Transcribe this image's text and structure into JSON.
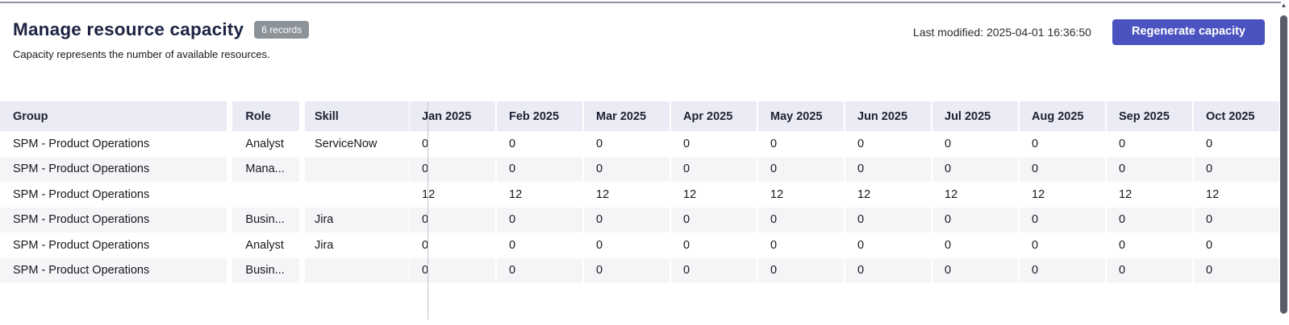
{
  "header": {
    "title": "Manage resource capacity",
    "records_badge": "6 records",
    "subtitle": "Capacity represents the number of available resources.",
    "last_modified": "Last modified: 2025-04-01 16:36:50",
    "regenerate_button": "Regenerate capacity"
  },
  "colors": {
    "accent": "#4b53c1",
    "table_header_bg": "#ebebf6",
    "row_stripe_bg": "#f5f5f8",
    "badge_bg": "#8c9399",
    "title_text": "#1d2342",
    "freeze_divider": "#c2c2cd",
    "top_border": "#8f90a4",
    "scrollbar_thumb": "#5a5c69"
  },
  "scrollbar": {
    "up_icon": "▲"
  },
  "table": {
    "fixed_columns": [
      "Group",
      "Role",
      "Skill"
    ],
    "month_columns": [
      "Jan 2025",
      "Feb 2025",
      "Mar 2025",
      "Apr 2025",
      "May 2025",
      "Jun 2025",
      "Jul 2025",
      "Aug 2025",
      "Sep 2025",
      "Oct 2025"
    ],
    "rows": [
      {
        "group": "SPM - Product Operations",
        "role": "Analyst",
        "skill": "ServiceNow",
        "values": [
          0,
          0,
          0,
          0,
          0,
          0,
          0,
          0,
          0,
          0
        ]
      },
      {
        "group": "SPM - Product Operations",
        "role": "Mana...",
        "skill": "",
        "values": [
          0,
          0,
          0,
          0,
          0,
          0,
          0,
          0,
          0,
          0
        ]
      },
      {
        "group": "SPM - Product Operations",
        "role": "",
        "skill": "",
        "values": [
          12,
          12,
          12,
          12,
          12,
          12,
          12,
          12,
          12,
          12
        ]
      },
      {
        "group": "SPM - Product Operations",
        "role": "Busin...",
        "skill": "Jira",
        "values": [
          0,
          0,
          0,
          0,
          0,
          0,
          0,
          0,
          0,
          0
        ]
      },
      {
        "group": "SPM - Product Operations",
        "role": "Analyst",
        "skill": "Jira",
        "values": [
          0,
          0,
          0,
          0,
          0,
          0,
          0,
          0,
          0,
          0
        ]
      },
      {
        "group": "SPM - Product Operations",
        "role": "Busin...",
        "skill": "",
        "values": [
          0,
          0,
          0,
          0,
          0,
          0,
          0,
          0,
          0,
          0
        ]
      }
    ]
  }
}
